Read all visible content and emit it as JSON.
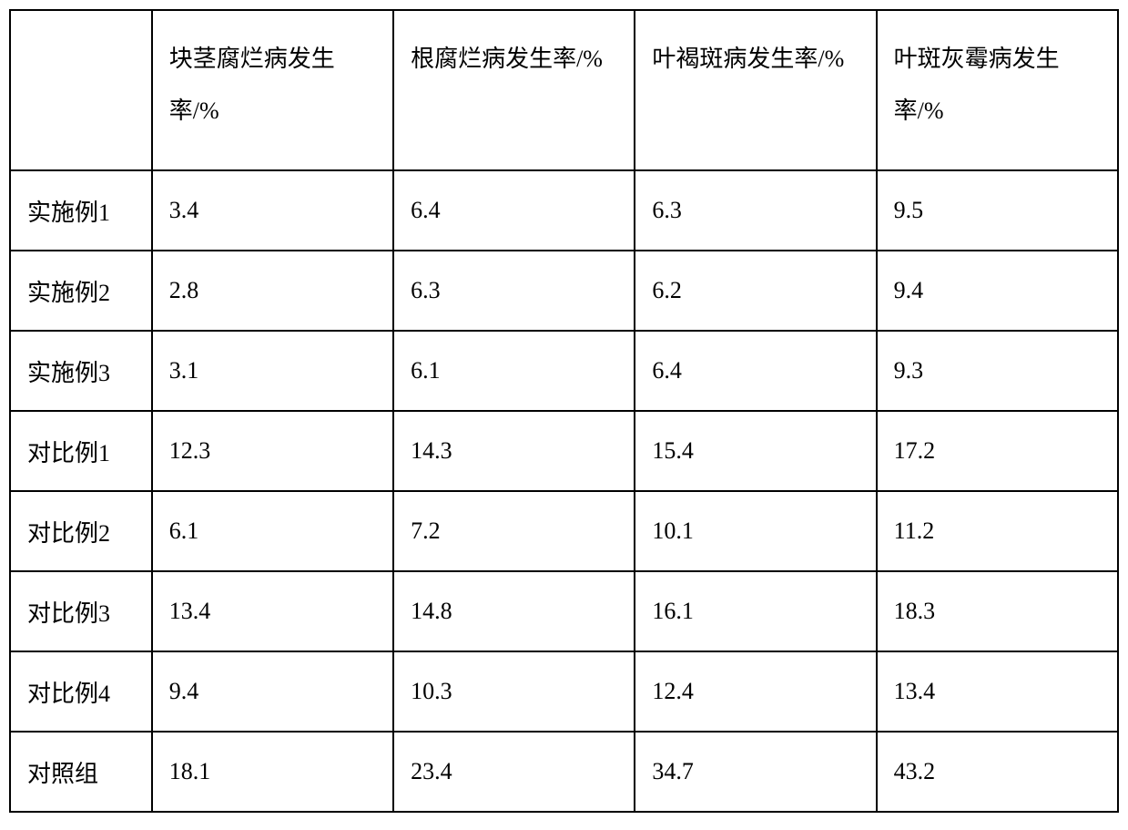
{
  "table": {
    "type": "table",
    "border_color": "#000000",
    "background_color": "#ffffff",
    "text_color": "#000000",
    "font_family": "SimSun",
    "font_size": 26,
    "border_width": 2,
    "column_widths": [
      12.8,
      21.8,
      21.8,
      21.8,
      21.8
    ],
    "header_row_height": 176,
    "data_row_height": 88,
    "columns": [
      "",
      "块茎腐烂病发生率/%",
      "根腐烂病发生率/%",
      "叶褐斑病发生率/%",
      "叶斑灰霉病发生率/%"
    ],
    "rows": [
      {
        "label": "实施例1",
        "values": [
          "3.4",
          "6.4",
          "6.3",
          "9.5"
        ]
      },
      {
        "label": "实施例2",
        "values": [
          "2.8",
          "6.3",
          "6.2",
          "9.4"
        ]
      },
      {
        "label": "实施例3",
        "values": [
          "3.1",
          "6.1",
          "6.4",
          "9.3"
        ]
      },
      {
        "label": "对比例1",
        "values": [
          "12.3",
          "14.3",
          "15.4",
          "17.2"
        ]
      },
      {
        "label": "对比例2",
        "values": [
          "6.1",
          "7.2",
          "10.1",
          "11.2"
        ]
      },
      {
        "label": "对比例3",
        "values": [
          "13.4",
          "14.8",
          "16.1",
          "18.3"
        ]
      },
      {
        "label": "对比例4",
        "values": [
          "9.4",
          "10.3",
          "12.4",
          "13.4"
        ]
      },
      {
        "label": "对照组",
        "values": [
          "18.1",
          "23.4",
          "34.7",
          "43.2"
        ]
      }
    ]
  }
}
